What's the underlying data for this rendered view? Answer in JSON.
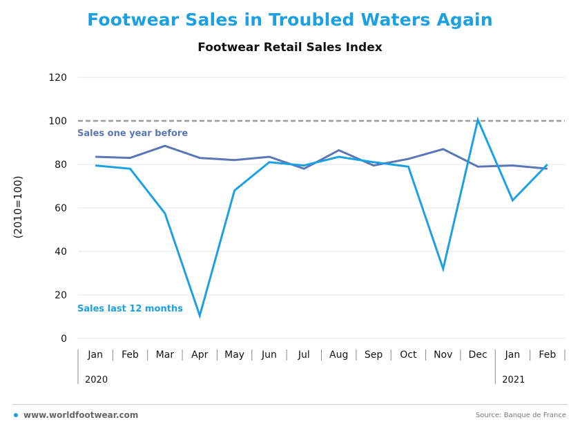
{
  "title": "Footwear Sales in Troubled Waters Again",
  "subtitle": "Footwear Retail Sales Index",
  "footer": {
    "website": "www.worldfootwear.com",
    "source": "Source: Banque de France"
  },
  "colors": {
    "accent": "#1ba1e2",
    "series_prev": "#5b75b5",
    "reference": "#999999",
    "grid": "#e6e6e6"
  },
  "chart_data": {
    "type": "line",
    "title": "Footwear Sales in Troubled Waters Again",
    "subtitle": "Footwear Retail Sales Index",
    "ylabel": "(2010=100)",
    "xlabel": "",
    "ylim": [
      0,
      120
    ],
    "yticks": [
      0,
      20,
      40,
      60,
      80,
      100,
      120
    ],
    "categories": [
      "Jan",
      "Feb",
      "Mar",
      "Apr",
      "May",
      "Jun",
      "Jul",
      "Aug",
      "Sep",
      "Oct",
      "Nov",
      "Dec",
      "Jan",
      "Feb"
    ],
    "year_groups": [
      {
        "label": "2020",
        "start": 0,
        "end": 11
      },
      {
        "label": "2021",
        "start": 12,
        "end": 13
      }
    ],
    "grid": true,
    "reference_line": {
      "value": 100,
      "style": "dashed"
    },
    "series": [
      {
        "name": "Sales last 12 months",
        "color": "#1ba1e2",
        "values": [
          79.5,
          78,
          57.5,
          10.5,
          68,
          81,
          79.5,
          83.5,
          81,
          79,
          32,
          100.5,
          63.5,
          80
        ]
      },
      {
        "name": "Sales one year before",
        "color": "#5b75b5",
        "values": [
          83.5,
          83,
          88.5,
          83,
          82,
          83.5,
          78,
          86.5,
          79.5,
          82.5,
          87,
          79,
          79.5,
          78
        ]
      }
    ]
  }
}
